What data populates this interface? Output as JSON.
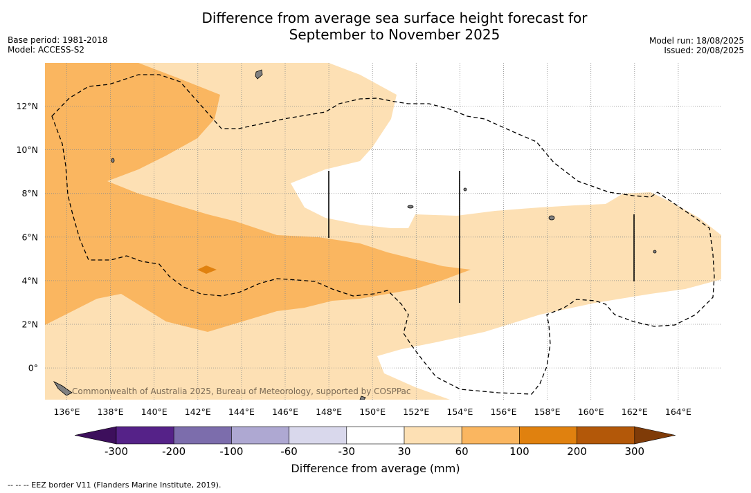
{
  "header": {
    "title_line1": "Difference from average sea surface height forecast for",
    "title_line2": "September to November 2025",
    "base_period": "Base period: 1981-2018",
    "model": "Model: ACCESS-S2",
    "model_run": "Model run: 18/08/2025",
    "issued": "Issued: 20/08/2025"
  },
  "map": {
    "lon_ticks": [
      "136°E",
      "138°E",
      "140°E",
      "142°E",
      "144°E",
      "146°E",
      "148°E",
      "150°E",
      "152°E",
      "154°E",
      "156°E",
      "158°E",
      "160°E",
      "162°E",
      "164°E"
    ],
    "lat_ticks": [
      "12°N",
      "10°N",
      "8°N",
      "6°N",
      "4°N",
      "2°N",
      "0°"
    ],
    "credit": "Commonwealth of Australia 2025, Bureau of Meteorology, supported by COSPPac",
    "colors": {
      "band_30_60": "#fde0b4",
      "band_60_100": "#fab660",
      "band_100_200": "#e0810f",
      "land": "#808080"
    }
  },
  "colorbar": {
    "label": "Difference from average (mm)",
    "ticks": [
      "-300",
      "-200",
      "-100",
      "-60",
      "-30",
      "30",
      "60",
      "100",
      "200",
      "300"
    ],
    "colors": [
      "#3d0f5c",
      "#552288",
      "#7c6dac",
      "#aea8d2",
      "#d9d8ec",
      "#ffffff",
      "#fde0b4",
      "#fab660",
      "#e0810f",
      "#b35809",
      "#7f3b08"
    ]
  },
  "footer": {
    "legend": "--  --  -- EEZ border V11 (Flanders Marine Institute, 2019)."
  }
}
